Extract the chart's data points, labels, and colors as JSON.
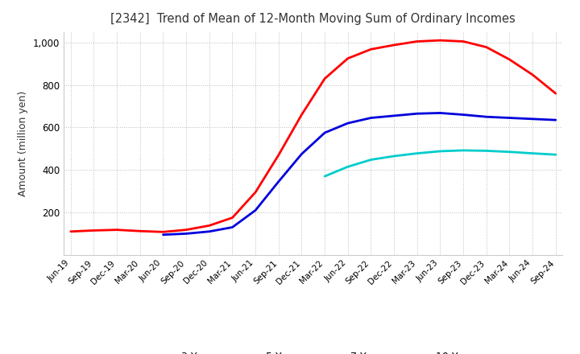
{
  "title": "[2342]  Trend of Mean of 12-Month Moving Sum of Ordinary Incomes",
  "ylabel": "Amount (million yen)",
  "ylim": [
    0,
    1050
  ],
  "yticks": [
    200,
    400,
    600,
    800,
    1000
  ],
  "background_color": "#ffffff",
  "grid_color": "#aaaaaa",
  "x_labels": [
    "Jun-19",
    "Sep-19",
    "Dec-19",
    "Mar-20",
    "Jun-20",
    "Sep-20",
    "Dec-20",
    "Mar-21",
    "Jun-21",
    "Sep-21",
    "Dec-21",
    "Mar-22",
    "Jun-22",
    "Sep-22",
    "Dec-22",
    "Mar-23",
    "Jun-23",
    "Sep-23",
    "Dec-23",
    "Mar-24",
    "Jun-24",
    "Sep-24"
  ],
  "series": {
    "3 Years": {
      "color": "#ff0000",
      "values": [
        110,
        115,
        118,
        112,
        108,
        118,
        138,
        175,
        295,
        470,
        660,
        830,
        925,
        968,
        988,
        1005,
        1010,
        1005,
        978,
        920,
        848,
        760
      ]
    },
    "5 Years": {
      "color": "#0000dd",
      "values": [
        null,
        null,
        null,
        null,
        95,
        100,
        110,
        130,
        210,
        345,
        475,
        575,
        620,
        645,
        655,
        665,
        668,
        660,
        650,
        645,
        640,
        635
      ]
    },
    "7 Years": {
      "color": "#00cccc",
      "values": [
        null,
        null,
        null,
        null,
        null,
        null,
        null,
        null,
        null,
        null,
        null,
        370,
        415,
        448,
        465,
        478,
        488,
        492,
        490,
        485,
        478,
        472
      ]
    },
    "10 Years": {
      "color": "#007700",
      "values": [
        null,
        null,
        null,
        null,
        null,
        null,
        null,
        null,
        null,
        null,
        null,
        null,
        null,
        null,
        null,
        null,
        null,
        null,
        null,
        null,
        null,
        null
      ]
    }
  }
}
